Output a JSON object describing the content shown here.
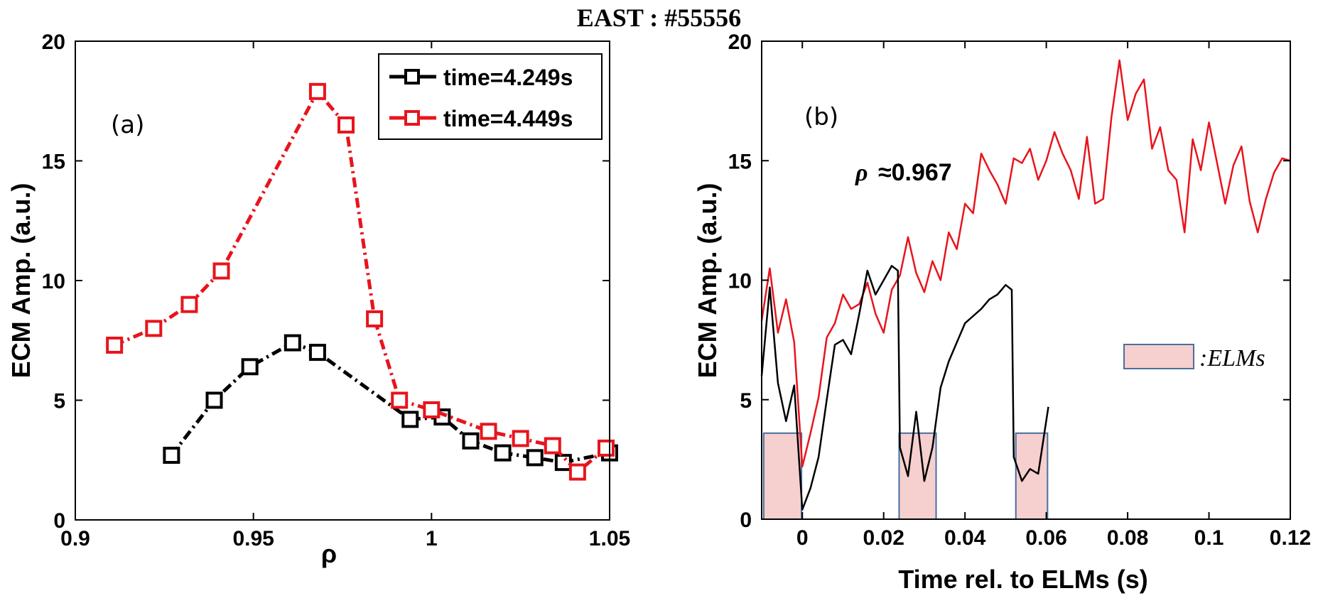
{
  "title": "EAST : #55556",
  "colors": {
    "black_series": "#000000",
    "red_series": "#e8141c",
    "elm_fill": "#f6cfcf",
    "elm_stroke": "#4a6fa0"
  },
  "chart_data": [
    {
      "type": "line",
      "panel_label": "(a)",
      "xlabel": "ρ",
      "ylabel": "ECM Amp. (a.u.)",
      "xlim": [
        0.9,
        1.05
      ],
      "ylim": [
        0,
        20
      ],
      "xticks": [
        "0.9",
        "0.95",
        "1",
        "1.05"
      ],
      "yticks": [
        "0",
        "5",
        "10",
        "15",
        "20"
      ],
      "grid": false,
      "legend_position": "top-right",
      "series": [
        {
          "name": "time=4.249s",
          "color": "#000000",
          "marker": "square",
          "x": [
            0.927,
            0.939,
            0.949,
            0.961,
            0.968,
            0.994,
            1.003,
            1.011,
            1.02,
            1.029,
            1.037,
            1.05
          ],
          "y": [
            2.7,
            5.0,
            6.4,
            7.4,
            7.0,
            4.2,
            4.3,
            3.3,
            2.8,
            2.6,
            2.4,
            2.8
          ]
        },
        {
          "name": "time=4.449s",
          "color": "#e8141c",
          "marker": "square",
          "x": [
            0.911,
            0.922,
            0.932,
            0.941,
            0.968,
            0.976,
            0.984,
            0.991,
            1.0,
            1.016,
            1.025,
            1.034,
            1.041,
            1.049
          ],
          "y": [
            7.3,
            8.0,
            9.0,
            10.4,
            17.9,
            16.5,
            8.4,
            5.0,
            4.6,
            3.7,
            3.4,
            3.1,
            2.0,
            3.0
          ]
        }
      ]
    },
    {
      "type": "line",
      "panel_label": "(b)",
      "xlabel": "Time rel. to ELMs (s)",
      "ylabel": "ECM Amp. (a.u.)",
      "xlim": [
        -0.01,
        0.12
      ],
      "ylim": [
        0,
        20
      ],
      "xticks": [
        "0",
        "0.02",
        "0.04",
        "0.06",
        "0.08",
        "0.1",
        "0.12"
      ],
      "yticks": [
        "0",
        "5",
        "10",
        "15",
        "20"
      ],
      "grid": false,
      "annotation": {
        "symbol": "ρ",
        "text": "≈0.967"
      },
      "legend_label": ":ELMs",
      "elm_windows": [
        [
          -0.0095,
          -0.0002
        ],
        [
          0.0238,
          0.0329
        ],
        [
          0.0525,
          0.0603
        ]
      ],
      "series": [
        {
          "color": "#e8141c",
          "x": [
            -0.01,
            -0.008,
            -0.006,
            -0.004,
            -0.002,
            0.0,
            0.002,
            0.004,
            0.006,
            0.008,
            0.01,
            0.012,
            0.014,
            0.016,
            0.018,
            0.02,
            0.022,
            0.024,
            0.026,
            0.028,
            0.03,
            0.032,
            0.034,
            0.036,
            0.038,
            0.04,
            0.042,
            0.044,
            0.046,
            0.048,
            0.05,
            0.052,
            0.054,
            0.056,
            0.058,
            0.06,
            0.062,
            0.064,
            0.066,
            0.068,
            0.07,
            0.072,
            0.074,
            0.076,
            0.078,
            0.08,
            0.082,
            0.084,
            0.086,
            0.088,
            0.09,
            0.092,
            0.094,
            0.096,
            0.098,
            0.1,
            0.102,
            0.104,
            0.106,
            0.108,
            0.11,
            0.112,
            0.114,
            0.116,
            0.118,
            0.12
          ],
          "y": [
            8.3,
            10.5,
            7.8,
            9.2,
            7.4,
            2.2,
            3.6,
            5.1,
            7.6,
            8.2,
            9.4,
            8.8,
            9.0,
            9.9,
            8.6,
            7.8,
            9.6,
            10.2,
            11.8,
            10.3,
            9.5,
            10.8,
            10.0,
            12.0,
            11.3,
            13.2,
            12.8,
            15.3,
            14.6,
            14.0,
            13.2,
            15.1,
            14.9,
            15.5,
            14.2,
            15.0,
            16.2,
            15.3,
            14.6,
            13.4,
            16.0,
            13.2,
            13.4,
            16.8,
            19.2,
            16.7,
            17.8,
            18.4,
            15.5,
            16.4,
            14.6,
            14.2,
            12.0,
            15.9,
            14.6,
            16.6,
            14.9,
            13.2,
            14.8,
            15.6,
            13.3,
            12.0,
            13.4,
            14.5,
            15.1,
            15.0
          ]
        },
        {
          "color": "#000000",
          "x": [
            -0.01,
            -0.008,
            -0.006,
            -0.004,
            -0.002,
            0.0,
            0.002,
            0.004,
            0.006,
            0.008,
            0.01,
            0.012,
            0.014,
            0.016,
            0.018,
            0.02,
            0.022,
            0.0235,
            0.024,
            0.026,
            0.028,
            0.03,
            0.032,
            0.034,
            0.036,
            0.038,
            0.04,
            0.042,
            0.044,
            0.046,
            0.048,
            0.05,
            0.0515,
            0.052,
            0.054,
            0.056,
            0.058,
            0.0605
          ],
          "y": [
            6.0,
            9.7,
            5.7,
            4.1,
            5.6,
            0.4,
            1.3,
            2.6,
            5.0,
            7.3,
            7.5,
            6.9,
            8.6,
            10.4,
            9.4,
            10.0,
            10.6,
            10.4,
            3.0,
            1.8,
            4.5,
            1.6,
            3.0,
            5.5,
            6.6,
            7.4,
            8.2,
            8.5,
            8.8,
            9.2,
            9.4,
            9.8,
            9.6,
            2.6,
            1.6,
            2.1,
            1.9,
            4.7
          ]
        }
      ]
    }
  ]
}
